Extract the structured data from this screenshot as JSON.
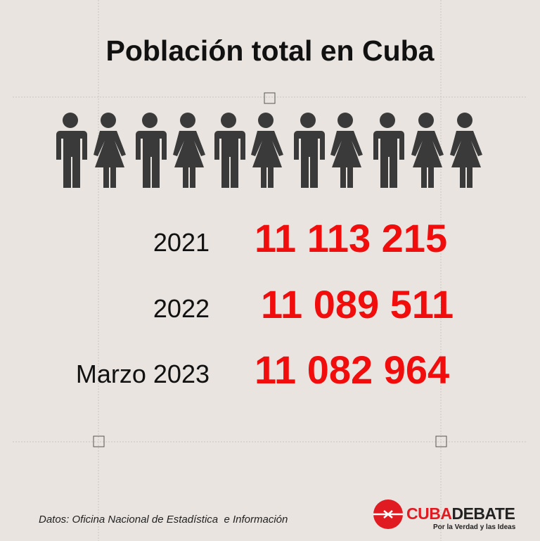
{
  "header": {
    "title": "Población total en Cuba"
  },
  "rows": [
    {
      "label": "2021",
      "value": "11 113 215"
    },
    {
      "label": "2022",
      "value": "11 089 511"
    },
    {
      "label": "Marzo 2023",
      "value": "11 082 964"
    }
  ],
  "footer": {
    "source": "Datos: Oficina Nacional de Estadística  e Información",
    "logo": {
      "part1": "CUBA",
      "part2": "DEBATE",
      "tagline": "Por la Verdad y las Ideas"
    }
  }
}
